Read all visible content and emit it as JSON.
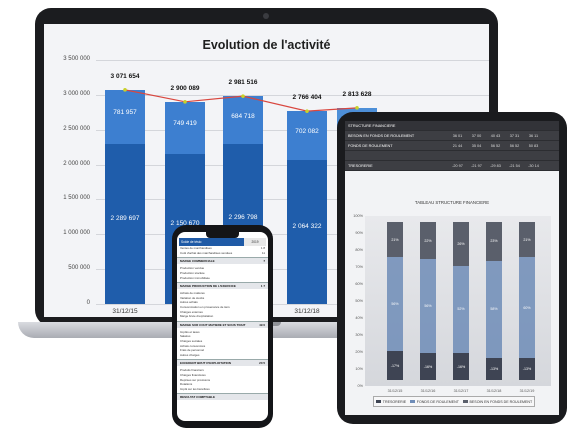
{
  "laptop": {
    "chart_data": {
      "type": "bar",
      "title": "Evolution de l'activité",
      "ylim": [
        0,
        3500000
      ],
      "yticks": [
        "3 500 000",
        "3 000 000",
        "2 500 000",
        "2 000 000",
        "1 500 000",
        "1 000 000",
        "500 000",
        "0"
      ],
      "categories": [
        "31/12/15",
        "31",
        "",
        "31/12/18",
        ""
      ],
      "series": [
        {
          "values": [
            2289697,
            2150670,
            2296798,
            2064322,
            null
          ]
        },
        {
          "values": [
            781957,
            749419,
            684718,
            702082,
            null
          ]
        }
      ],
      "totals": [
        3071654,
        2900089,
        2981516,
        2766404,
        2813628
      ],
      "bottom_labels": [
        "2 289 697",
        "2 150 670",
        "2 296 798",
        "2 064 322",
        ""
      ],
      "top_labels": [
        "781 957",
        "749 419",
        "684 718",
        "702 082",
        ""
      ],
      "total_labels": [
        "3 071 654",
        "2 900 089",
        "2 981 516",
        "2 766 404",
        "2 813 628"
      ],
      "grid": true,
      "colors": {
        "bottom": "#1f5dab",
        "top": "#3d7fd0",
        "line": "#d9473f",
        "marker": "#c8d22a"
      }
    }
  },
  "tablet": {
    "table": {
      "header": [
        "STRUCTURE FINANCIERE",
        "",
        "",
        "",
        "",
        ""
      ],
      "rows": [
        {
          "label": "BESOIN EN FONDS DE ROULEMENT",
          "values": [
            "36 01",
            "37 00",
            "40 43",
            "37 31",
            "36 11"
          ]
        },
        {
          "label": "FONDS DE ROULEMENT",
          "values": [
            "21 44",
            "35 04",
            "56 52",
            "56 52",
            "50 83"
          ]
        },
        {
          "label": "",
          "values": [
            "",
            "",
            "",
            "",
            ""
          ]
        },
        {
          "label": "TRESORERIE",
          "values": [
            "-20 97",
            "-21 97",
            "-29 83",
            "-21 54",
            "-30 14"
          ]
        }
      ]
    },
    "chart_data": {
      "type": "bar",
      "title": "TABLEAU STRUCTURE FINANCIERE",
      "yticks": [
        "100%",
        "90%",
        "80%",
        "70%",
        "60%",
        "50%",
        "40%",
        "30%",
        "20%",
        "10%",
        "0%"
      ],
      "categories": [
        "31/12/15",
        "31/12/16",
        "31/12/17",
        "31/12/18",
        "31/12/19"
      ],
      "series": [
        {
          "name": "TRESORERIE",
          "values": [
            0.17,
            0.16,
            0.16,
            0.13,
            0.13
          ]
        },
        {
          "name": "FONDS DE ROULEMENT",
          "values": [
            0.56,
            0.56,
            0.52,
            0.58,
            0.6
          ]
        },
        {
          "name": "BESOIN EN FONDS DE ROULEMENT",
          "values": [
            0.21,
            0.22,
            0.26,
            0.23,
            0.21
          ]
        }
      ],
      "bottom_labels": [
        "-17%",
        "-16%",
        "-16%",
        "-13%",
        "-13%"
      ],
      "mid_labels": [
        "56%",
        "56%",
        "52%",
        "58%",
        "60%"
      ],
      "top_labels": [
        "21%",
        "22%",
        "26%",
        "23%",
        "21%"
      ],
      "colors": [
        "#3e4453",
        "#6f8db8",
        "#5a5f6b"
      ]
    }
  },
  "phone": {
    "header_title": "Solde de tésto",
    "header_year": "2019",
    "sections": [
      {
        "title": "MARGE COMMERCIALE",
        "value": "7"
      },
      {
        "title": "MARGE PRODUCTION DE L'EXERCICE",
        "value": "1 7"
      },
      {
        "title": "MARGE SUR COUT MATIERE ET SOUS TRAIT",
        "value": "49 0"
      },
      {
        "title": "EXCEDENT BRUT D'EXPLOITATION",
        "value": "20 5"
      },
      {
        "title": "RESULTAT COMPTABLE",
        "value": ""
      }
    ],
    "rows": [
      {
        "label": "Ventes de marchandises",
        "value": "1 8"
      },
      {
        "label": "Coût d'achat des marchandises vendues",
        "value": "11"
      },
      {
        "label": "Production vendue",
        "value": ""
      },
      {
        "label": "Production stockée",
        "value": ""
      },
      {
        "label": "Production immobilisée",
        "value": ""
      },
      {
        "label": "Achats de matières",
        "value": ""
      },
      {
        "label": "Variation de stocks",
        "value": ""
      },
      {
        "label": "Autres achats",
        "value": ""
      },
      {
        "label": "Consommation en provenance de tiers",
        "value": ""
      },
      {
        "label": "Charges externes",
        "value": ""
      },
      {
        "label": "Marge brute d'exploitation",
        "value": ""
      },
      {
        "label": "Impôts et taxes",
        "value": ""
      },
      {
        "label": "Salaires",
        "value": ""
      },
      {
        "label": "Charges sociales",
        "value": ""
      },
      {
        "label": "Achats consommés",
        "value": ""
      },
      {
        "label": "Frais de personnel",
        "value": ""
      },
      {
        "label": "Autres charges",
        "value": ""
      },
      {
        "label": "Produits financiers",
        "value": ""
      },
      {
        "label": "Charges financières",
        "value": ""
      },
      {
        "label": "Reprises sur provisions",
        "value": ""
      },
      {
        "label": "Dotations",
        "value": ""
      },
      {
        "label": "Impôt sur les bénéfices",
        "value": ""
      }
    ]
  }
}
